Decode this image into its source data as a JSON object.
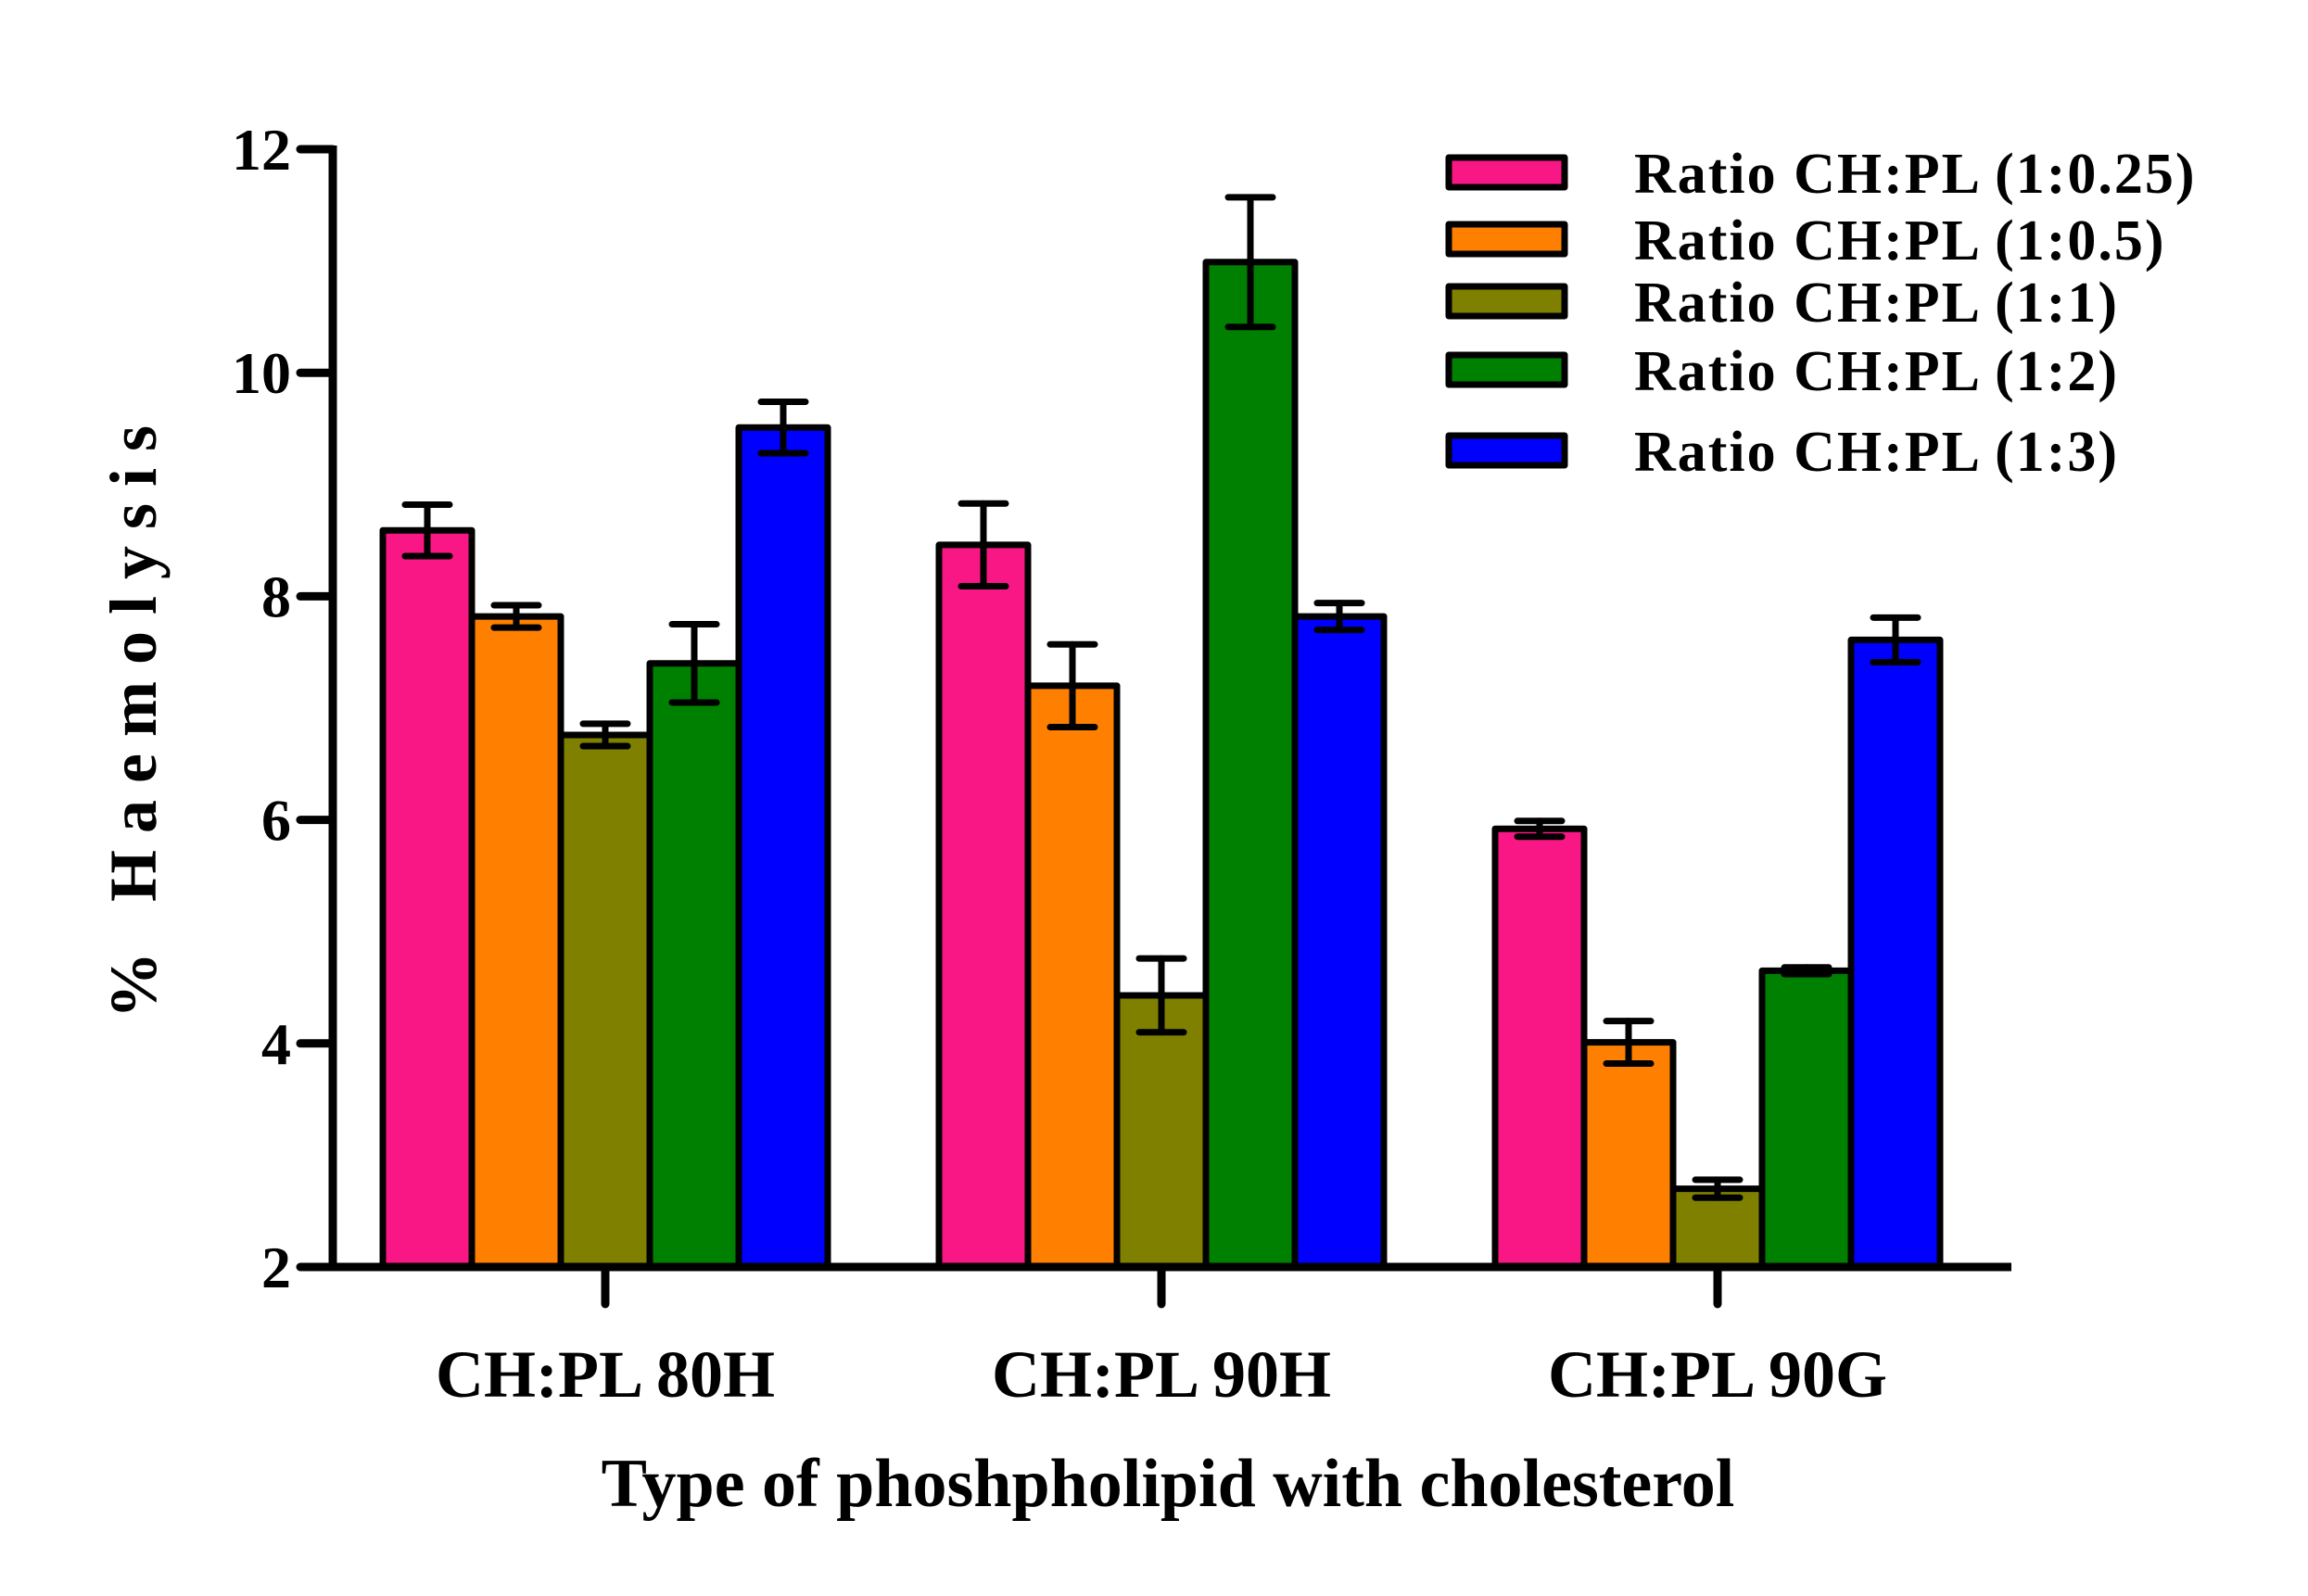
{
  "chart_data": {
    "type": "bar",
    "title": "",
    "xlabel": "Type of phoshpholipid with cholesterol",
    "ylabel": "% Haemolysis",
    "ylim": [
      2,
      12
    ],
    "yticks": [
      2,
      4,
      6,
      8,
      10,
      12
    ],
    "grid": false,
    "legend_position": "top-right",
    "categories": [
      "CH:PL 80H",
      "CH:PL 90H",
      "CH:PL 90G"
    ],
    "series": [
      {
        "name": "Ratio CH:PL (1:0.25)",
        "color": "#F81784",
        "values": [
          8.59,
          8.46,
          5.92
        ],
        "errors": [
          0.23,
          0.37,
          0.07
        ]
      },
      {
        "name": "Ratio CH:PL (1:0.5)",
        "color": "#FF8000",
        "values": [
          7.82,
          7.2,
          4.01
        ],
        "errors": [
          0.1,
          0.37,
          0.19
        ]
      },
      {
        "name": "Ratio CH:PL (1:1)",
        "color": "#808000",
        "values": [
          6.76,
          4.43,
          2.7
        ],
        "errors": [
          0.1,
          0.33,
          0.08
        ]
      },
      {
        "name": "Ratio CH:PL (1:2)",
        "color": "#008000",
        "values": [
          7.4,
          10.99,
          4.65
        ],
        "errors": [
          0.35,
          0.58,
          0.03
        ]
      },
      {
        "name": "Ratio CH:PL (1:3)",
        "color": "#0000FF",
        "values": [
          9.51,
          7.82,
          7.61
        ],
        "errors": [
          0.23,
          0.12,
          0.2
        ]
      }
    ]
  }
}
